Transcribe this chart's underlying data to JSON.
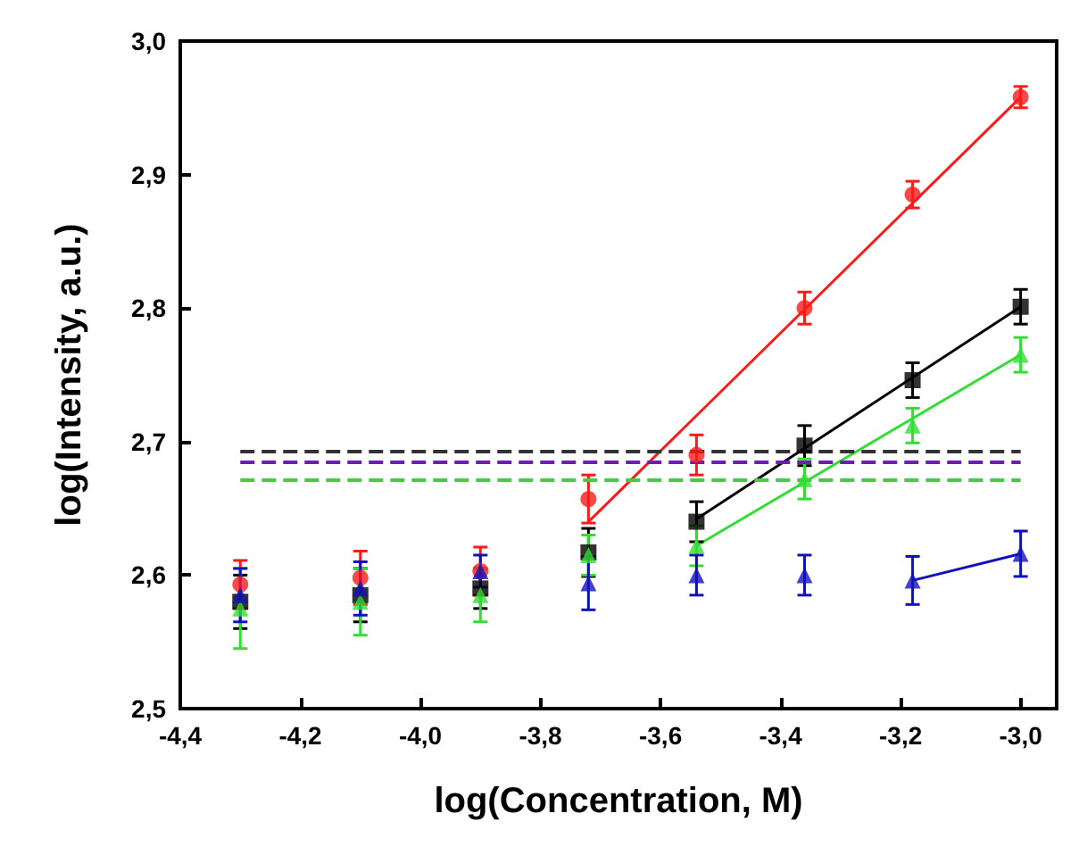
{
  "chart_data": {
    "type": "scatter",
    "xlabel": "log(Concentration, M)",
    "ylabel": "log(Intensity, a.u.)",
    "xlim": [
      -4.4,
      -2.94
    ],
    "ylim": [
      2.5,
      3.0
    ],
    "xticks": [
      {
        "value": -4.4,
        "label": "-4,4"
      },
      {
        "value": -4.2,
        "label": "-4,2"
      },
      {
        "value": -4.0,
        "label": "-4,0"
      },
      {
        "value": -3.8,
        "label": "-3,8"
      },
      {
        "value": -3.6,
        "label": "-3,6"
      },
      {
        "value": -3.4,
        "label": "-3,4"
      },
      {
        "value": -3.2,
        "label": "-3,2"
      },
      {
        "value": -3.0,
        "label": "-3,0"
      }
    ],
    "yticks": [
      {
        "value": 2.5,
        "label": "2,5"
      },
      {
        "value": 2.6,
        "label": "2,6"
      },
      {
        "value": 2.7,
        "label": "2,7"
      },
      {
        "value": 2.8,
        "label": "2,8"
      },
      {
        "value": 2.9,
        "label": "2,9"
      },
      {
        "value": 3.0,
        "label": "3,0"
      }
    ],
    "x": [
      -4.3,
      -4.1,
      -3.9,
      -3.72,
      -3.54,
      -3.36,
      -3.18,
      -3.0
    ],
    "grid": false,
    "series": [
      {
        "color": "#ff1a1a",
        "marker": "circle",
        "values": [
          2.593,
          2.598,
          2.603,
          2.657,
          2.69,
          2.8,
          2.885,
          2.958
        ],
        "errors": [
          0.018,
          0.02,
          0.018,
          0.018,
          0.015,
          0.012,
          0.01,
          0.008
        ]
      },
      {
        "color": "#000000",
        "marker": "square",
        "values": [
          2.58,
          2.585,
          2.59,
          2.617,
          2.64,
          2.697,
          2.746,
          2.801
        ],
        "errors": [
          0.02,
          0.02,
          0.015,
          0.018,
          0.015,
          0.015,
          0.013,
          0.013
        ]
      },
      {
        "color": "#33dd33",
        "marker": "triangle",
        "values": [
          2.575,
          2.58,
          2.585,
          2.615,
          2.622,
          2.672,
          2.712,
          2.765
        ],
        "errors": [
          0.03,
          0.025,
          0.02,
          0.015,
          0.015,
          0.015,
          0.013,
          0.013
        ]
      },
      {
        "color": "#1111bb",
        "marker": "triangle",
        "values": [
          2.585,
          2.59,
          2.603,
          2.594,
          2.6,
          2.6,
          2.596,
          2.616
        ],
        "errors": [
          0.02,
          0.02,
          0.012,
          0.02,
          0.015,
          0.015,
          0.018,
          0.017
        ]
      },
      {
        "type": "line",
        "color": "#ff1a1a",
        "x": [
          -3.72,
          -3.0
        ],
        "values": [
          2.64,
          2.958
        ]
      },
      {
        "type": "line",
        "color": "#000000",
        "x": [
          -3.54,
          -3.0
        ],
        "values": [
          2.642,
          2.801
        ]
      },
      {
        "type": "line",
        "color": "#33dd33",
        "x": [
          -3.54,
          -3.0
        ],
        "values": [
          2.622,
          2.765
        ]
      },
      {
        "type": "line",
        "color": "#1111bb",
        "x": [
          -3.18,
          -3.0
        ],
        "values": [
          2.596,
          2.616
        ]
      }
    ],
    "ref_lines": [
      {
        "axis": "y",
        "value": 2.693,
        "color": "#333333",
        "line_style": "dashed"
      },
      {
        "axis": "y",
        "value": 2.685,
        "color": "#6a1fb0",
        "line_style": "dashed"
      },
      {
        "axis": "y",
        "value": 2.672,
        "color": "#44cc44",
        "line_style": "dashed"
      }
    ]
  }
}
